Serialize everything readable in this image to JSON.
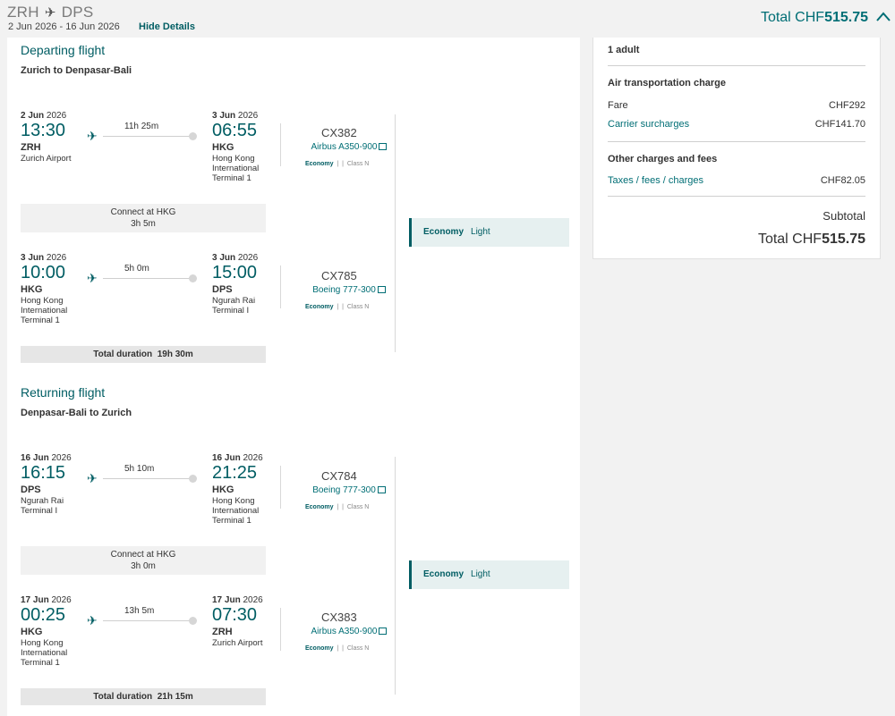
{
  "header": {
    "origin": "ZRH",
    "destination": "DPS",
    "dates": "2 Jun 2026 - 16 Jun 2026",
    "hide_details": "Hide Details",
    "total_label": "Total CHF",
    "total_value": "515.75"
  },
  "departing": {
    "title": "Departing flight",
    "route": "Zurich to Denpasar-Bali",
    "segments": [
      {
        "dep_date": "2 Jun",
        "dep_year": "2026",
        "dep_time": "13:30",
        "dep_code": "ZRH",
        "dep_airport": "Zurich Airport",
        "duration": "11h 25m",
        "arr_date": "3 Jun",
        "arr_year": "2026",
        "arr_time": "06:55",
        "arr_code": "HKG",
        "arr_airport": "Hong Kong International Terminal 1",
        "flight_no": "CX382",
        "aircraft": "Airbus A350-900",
        "cabin": "Economy",
        "booking_class": "Class N"
      },
      {
        "dep_date": "3 Jun",
        "dep_year": "2026",
        "dep_time": "10:00",
        "dep_code": "HKG",
        "dep_airport": "Hong Kong International Terminal 1",
        "duration": "5h 0m",
        "arr_date": "3 Jun",
        "arr_year": "2026",
        "arr_time": "15:00",
        "arr_code": "DPS",
        "arr_airport": "Ngurah Rai Terminal I",
        "flight_no": "CX785",
        "aircraft": "Boeing 777-300",
        "cabin": "Economy",
        "booking_class": "Class N"
      }
    ],
    "connect_label": "Connect at HKG",
    "connect_time": "3h 5m",
    "total_duration_label": "Total duration",
    "total_duration": "19h 30m",
    "fare_cabin": "Economy",
    "fare_family": "Light"
  },
  "returning": {
    "title": "Returning flight",
    "route": "Denpasar-Bali to Zurich",
    "segments": [
      {
        "dep_date": "16 Jun",
        "dep_year": "2026",
        "dep_time": "16:15",
        "dep_code": "DPS",
        "dep_airport": "Ngurah Rai Terminal I",
        "duration": "5h 10m",
        "arr_date": "16 Jun",
        "arr_year": "2026",
        "arr_time": "21:25",
        "arr_code": "HKG",
        "arr_airport": "Hong Kong International Terminal 1",
        "flight_no": "CX784",
        "aircraft": "Boeing 777-300",
        "cabin": "Economy",
        "booking_class": "Class N"
      },
      {
        "dep_date": "17 Jun",
        "dep_year": "2026",
        "dep_time": "00:25",
        "dep_code": "HKG",
        "dep_airport": "Hong Kong International Terminal 1",
        "duration": "13h 5m",
        "arr_date": "17 Jun",
        "arr_year": "2026",
        "arr_time": "07:30",
        "arr_code": "ZRH",
        "arr_airport": "Zurich Airport",
        "flight_no": "CX383",
        "aircraft": "Airbus A350-900",
        "cabin": "Economy",
        "booking_class": "Class N"
      }
    ],
    "connect_label": "Connect at HKG",
    "connect_time": "3h 0m",
    "total_duration_label": "Total duration",
    "total_duration": "21h 15m",
    "fare_cabin": "Economy",
    "fare_family": "Light"
  },
  "summary": {
    "passengers": "1 adult",
    "air_title": "Air transportation charge",
    "fare_label": "Fare",
    "fare_value": "CHF292",
    "surcharge_label": "Carrier surcharges",
    "surcharge_value": "CHF141.70",
    "other_title": "Other charges and fees",
    "taxes_label": "Taxes / fees / charges",
    "taxes_value": "CHF82.05",
    "subtotal_label": "Subtotal",
    "total_label": "Total CHF",
    "total_value": "515.75"
  }
}
